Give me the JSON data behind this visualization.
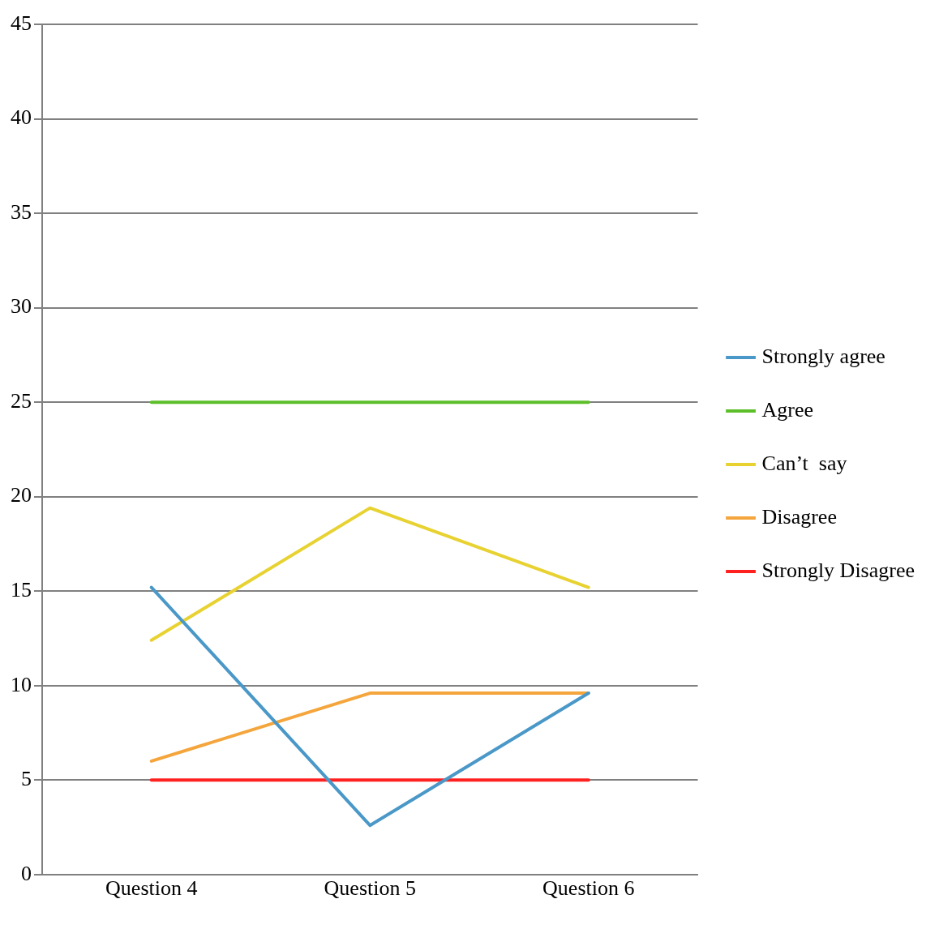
{
  "chart_data": {
    "type": "line",
    "categories": [
      "Question 4",
      "Question 5",
      "Question 6"
    ],
    "series": [
      {
        "name": "Strongly agree",
        "color": "#4a98c8",
        "values": [
          15.2,
          2.6,
          9.6
        ]
      },
      {
        "name": "Agree",
        "color": "#5cbf2a",
        "values": [
          25,
          25,
          25
        ]
      },
      {
        "name": "Can’t  say",
        "color": "#e8d232",
        "values": [
          12.4,
          19.4,
          15.2
        ]
      },
      {
        "name": "Disagree",
        "color": "#f4a53c",
        "values": [
          6,
          9.6,
          9.6
        ]
      },
      {
        "name": "Strongly Disagree",
        "color": "#ff2020",
        "values": [
          5,
          5,
          5
        ]
      }
    ],
    "ylim": [
      0,
      45
    ],
    "yticks": [
      0,
      5,
      10,
      15,
      20,
      25,
      30,
      35,
      40,
      45
    ],
    "grid": "y",
    "legend": "right",
    "marker": "none",
    "line_style": "solid"
  }
}
